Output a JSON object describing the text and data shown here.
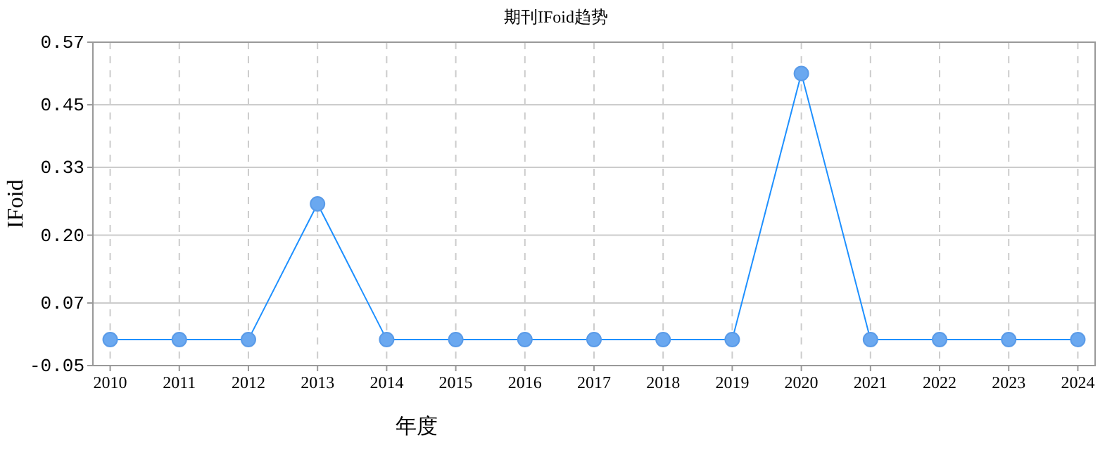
{
  "chart_data": {
    "type": "line",
    "title": "期刊IFoid趋势",
    "xlabel": "年度",
    "ylabel": "IFoid",
    "categories": [
      "2010",
      "2011",
      "2012",
      "2013",
      "2014",
      "2015",
      "2016",
      "2017",
      "2018",
      "2019",
      "2020",
      "2021",
      "2022",
      "2023",
      "2024"
    ],
    "series": [
      {
        "color": "#1e90ff",
        "values": [
          0,
          0,
          0,
          0.26,
          0,
          0,
          0,
          0,
          0,
          0,
          0.51,
          0,
          0,
          0,
          0
        ]
      }
    ],
    "ylim": [
      -0.05,
      0.57
    ],
    "yticks": [
      -0.05,
      0.07,
      {
        "value": 0.2,
        "label": "0.20"
      },
      0.33,
      0.45,
      0.57
    ],
    "grid": true,
    "marker": "circle",
    "line_style": "solid"
  }
}
